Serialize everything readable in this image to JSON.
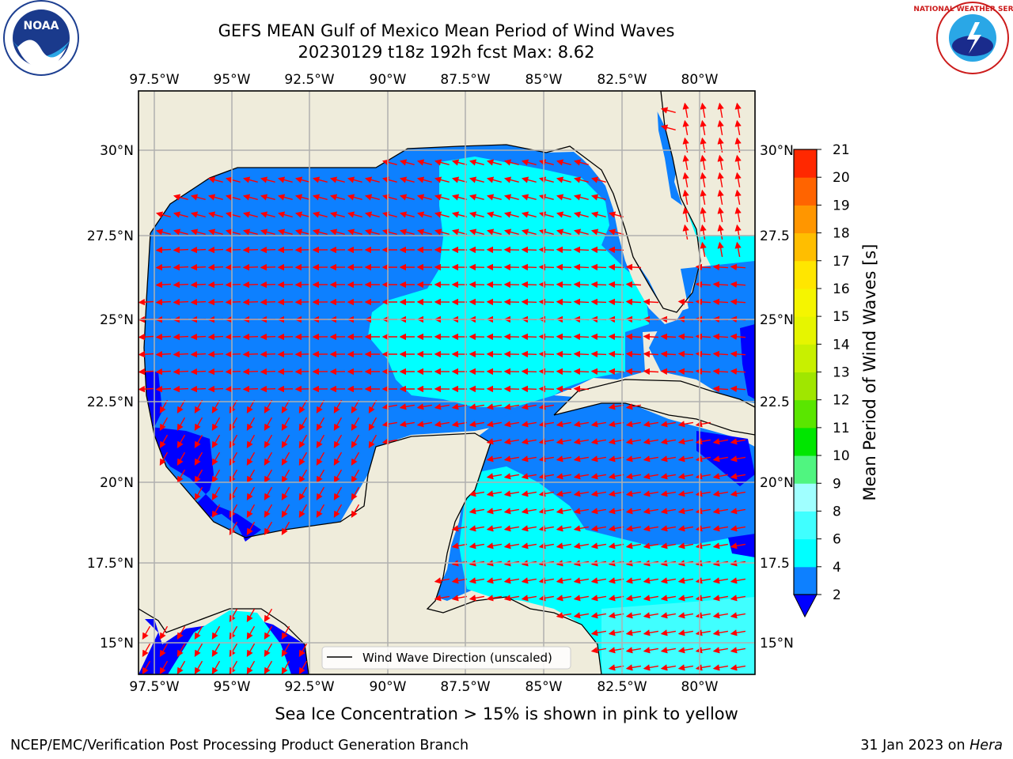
{
  "title": {
    "line1": "GEFS MEAN Gulf of Mexico Mean Period of Wind Waves",
    "line2": "20230129 t18z 192h fcst   Max: 8.62"
  },
  "map": {
    "lon_labels": [
      "97.5°W",
      "95°W",
      "92.5°W",
      "90°W",
      "87.5°W",
      "85°W",
      "82.5°W",
      "80°W"
    ],
    "lat_labels_left": [
      "30°N",
      "27.5°N",
      "25°N",
      "22.5°N",
      "20°N",
      "17.5°N",
      "15°N"
    ],
    "lat_labels_right": [
      "30°N",
      "27.5",
      "25°N",
      "22.5",
      "20°N",
      "17.5",
      "15°N"
    ],
    "legend_label": "Wind Wave Direction (unscaled)",
    "colors": {
      "land": "#efecdb",
      "ocean_lt2": "#0000ff",
      "ocean_2_4": "#0d80ff",
      "ocean_4_6": "#00ffff",
      "arrow": "#ff0000",
      "grid": "#b0b0b0"
    }
  },
  "colorbar": {
    "label": "Mean Period of Wind Waves [s]",
    "ticks": [
      "2",
      "4",
      "6",
      "8",
      "9",
      "10",
      "11",
      "12",
      "13",
      "14",
      "15",
      "16",
      "17",
      "18",
      "19",
      "20",
      "21"
    ],
    "bands": [
      "#0d80ff",
      "#00ffff",
      "#40ffff",
      "#a0ffff",
      "#50f580",
      "#00e600",
      "#5ae600",
      "#a0e600",
      "#c8f000",
      "#e6f500",
      "#f5f500",
      "#ffe600",
      "#ffbe00",
      "#ff9600",
      "#ff6400",
      "#ff2800"
    ],
    "extend_color": "#0000ff"
  },
  "footer": {
    "note": "Sea Ice Concentration > 15% is shown in pink to yellow",
    "credit_left": "NCEP/EMC/Verification Post Processing Product Generation Branch",
    "credit_right_date": "31 Jan 2023 on ",
    "credit_right_host": "Hera"
  },
  "logos": {
    "noaa_text": "NOAA",
    "nws_text": "NATIONAL WEATHER SERVICE"
  }
}
